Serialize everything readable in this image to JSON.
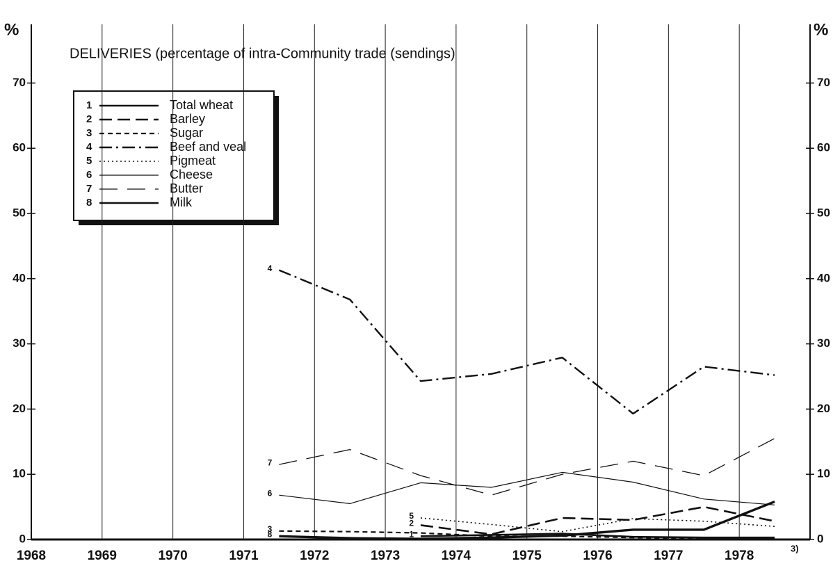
{
  "chart_data": {
    "type": "line",
    "title": "DELIVERIES (percentage of intra-Community trade (sendings)",
    "y_unit_label": "%",
    "annotation": "3)",
    "x": [
      1971.5,
      1972.5,
      1973.5,
      1974.5,
      1975.5,
      1976.5,
      1977.5,
      1978.5
    ],
    "xlim": [
      1968,
      1979
    ],
    "xticks": [
      1968,
      1969,
      1970,
      1971,
      1972,
      1973,
      1974,
      1975,
      1976,
      1977,
      1978
    ],
    "ylim": [
      0,
      79
    ],
    "yticks": [
      0,
      10,
      20,
      30,
      40,
      50,
      60,
      70
    ],
    "grid": true,
    "legend": "upper left",
    "series": [
      {
        "key": "1",
        "name": "Total wheat",
        "color": "#111111",
        "style": "solid",
        "width": 2.6,
        "values": [
          null,
          null,
          0.5,
          0.7,
          0.9,
          0.4,
          0.3,
          0.3
        ]
      },
      {
        "key": "2",
        "name": "Barley",
        "color": "#111111",
        "style": "dashed",
        "width": 2.6,
        "values": [
          null,
          null,
          2.2,
          0.8,
          3.3,
          3.0,
          5.0,
          2.8
        ]
      },
      {
        "key": "3",
        "name": "Sugar",
        "color": "#111111",
        "style": "shortdash",
        "width": 2.2,
        "values": [
          1.3,
          1.2,
          1.0,
          0.5,
          0.5,
          0.3,
          0.2,
          0.1
        ]
      },
      {
        "key": "4",
        "name": "Beef and veal",
        "color": "#111111",
        "style": "dashdot",
        "width": 2.4,
        "values": [
          41.3,
          36.8,
          24.3,
          25.4,
          27.9,
          19.3,
          26.5,
          25.2
        ]
      },
      {
        "key": "5",
        "name": "Pigmeat",
        "color": "#111111",
        "style": "dotted",
        "width": 1.6,
        "values": [
          null,
          null,
          3.3,
          2.3,
          1.2,
          3.2,
          2.8,
          2.0
        ]
      },
      {
        "key": "6",
        "name": "Cheese",
        "color": "#111111",
        "style": "solid",
        "width": 1.2,
        "values": [
          6.8,
          5.5,
          8.7,
          8.0,
          10.3,
          8.8,
          6.2,
          5.3
        ]
      },
      {
        "key": "7",
        "name": "Butter",
        "color": "#111111",
        "style": "longdash",
        "width": 1.3,
        "values": [
          11.5,
          13.8,
          9.8,
          6.8,
          10.0,
          12.0,
          9.8,
          15.5
        ]
      },
      {
        "key": "8",
        "name": "Milk",
        "color": "#111111",
        "style": "solid",
        "width": 3.4,
        "values": [
          0.5,
          0.2,
          0.1,
          0.3,
          0.6,
          1.5,
          1.5,
          5.8
        ]
      }
    ]
  }
}
